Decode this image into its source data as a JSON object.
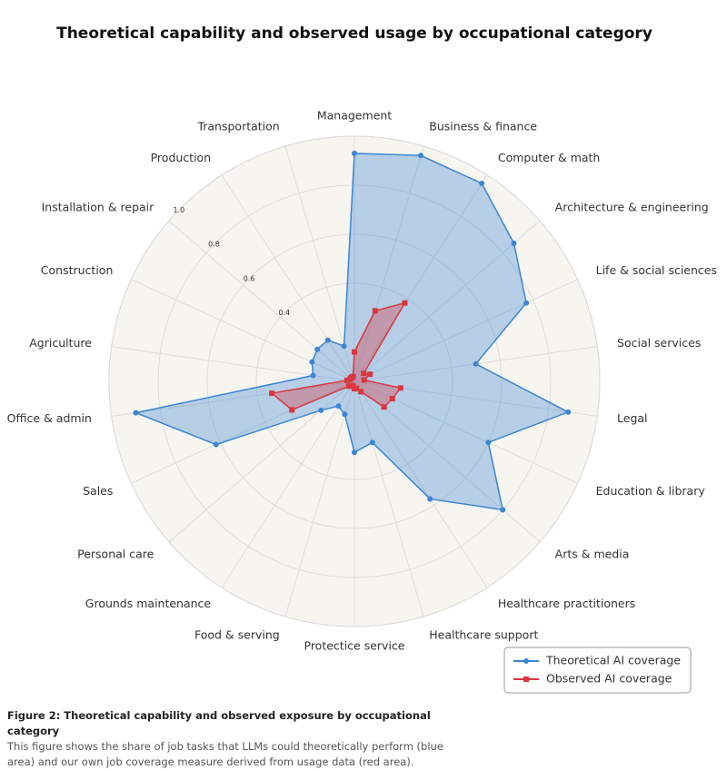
{
  "chart_data": {
    "type": "radar",
    "title": "Theoretical capability and observed usage by occupational category",
    "categories": [
      "Management",
      "Business & finance",
      "Computer & math",
      "Architecture & engineering",
      "Life & social sciences",
      "Social services",
      "Legal",
      "Education & library",
      "Arts & media",
      "Healthcare practitioners",
      "Healthcare support",
      "Protectice service",
      "Food & serving",
      "Grounds maintenance",
      "Personal care",
      "Sales",
      "Office & admin",
      "Agriculture",
      "Construction",
      "Installation & repair",
      "Production",
      "Transportation"
    ],
    "series": [
      {
        "name": "Theoretical AI coverage",
        "color": "#3b86d4",
        "values": [
          0.93,
          0.96,
          0.96,
          0.86,
          0.77,
          0.5,
          0.88,
          0.6,
          0.8,
          0.57,
          0.26,
          0.29,
          0.14,
          0.12,
          0.18,
          0.62,
          0.9,
          0.17,
          0.19,
          0.2,
          0.2,
          0.15
        ]
      },
      {
        "name": "Observed AI coverage",
        "color": "#d9363e",
        "values": [
          0.12,
          0.3,
          0.38,
          0.05,
          0.07,
          0.04,
          0.19,
          0.17,
          0.16,
          0.05,
          0.03,
          0.03,
          0.02,
          0.02,
          0.03,
          0.28,
          0.34,
          0.03,
          0.02,
          0.02,
          0.02,
          0.02
        ]
      }
    ],
    "ylim": [
      0,
      1
    ],
    "yticks": [
      0.4,
      0.6,
      0.8,
      {
        "value": 1,
        "label": "1.0"
      }
    ],
    "legend": "lower right",
    "caption": {
      "title": "Figure 2: Theoretical capability and observed exposure by occupational category",
      "text": "This figure shows the share of job tasks that LLMs could theoretically perform (blue area) and our own job coverage measure derived from usage data (red area)."
    }
  }
}
